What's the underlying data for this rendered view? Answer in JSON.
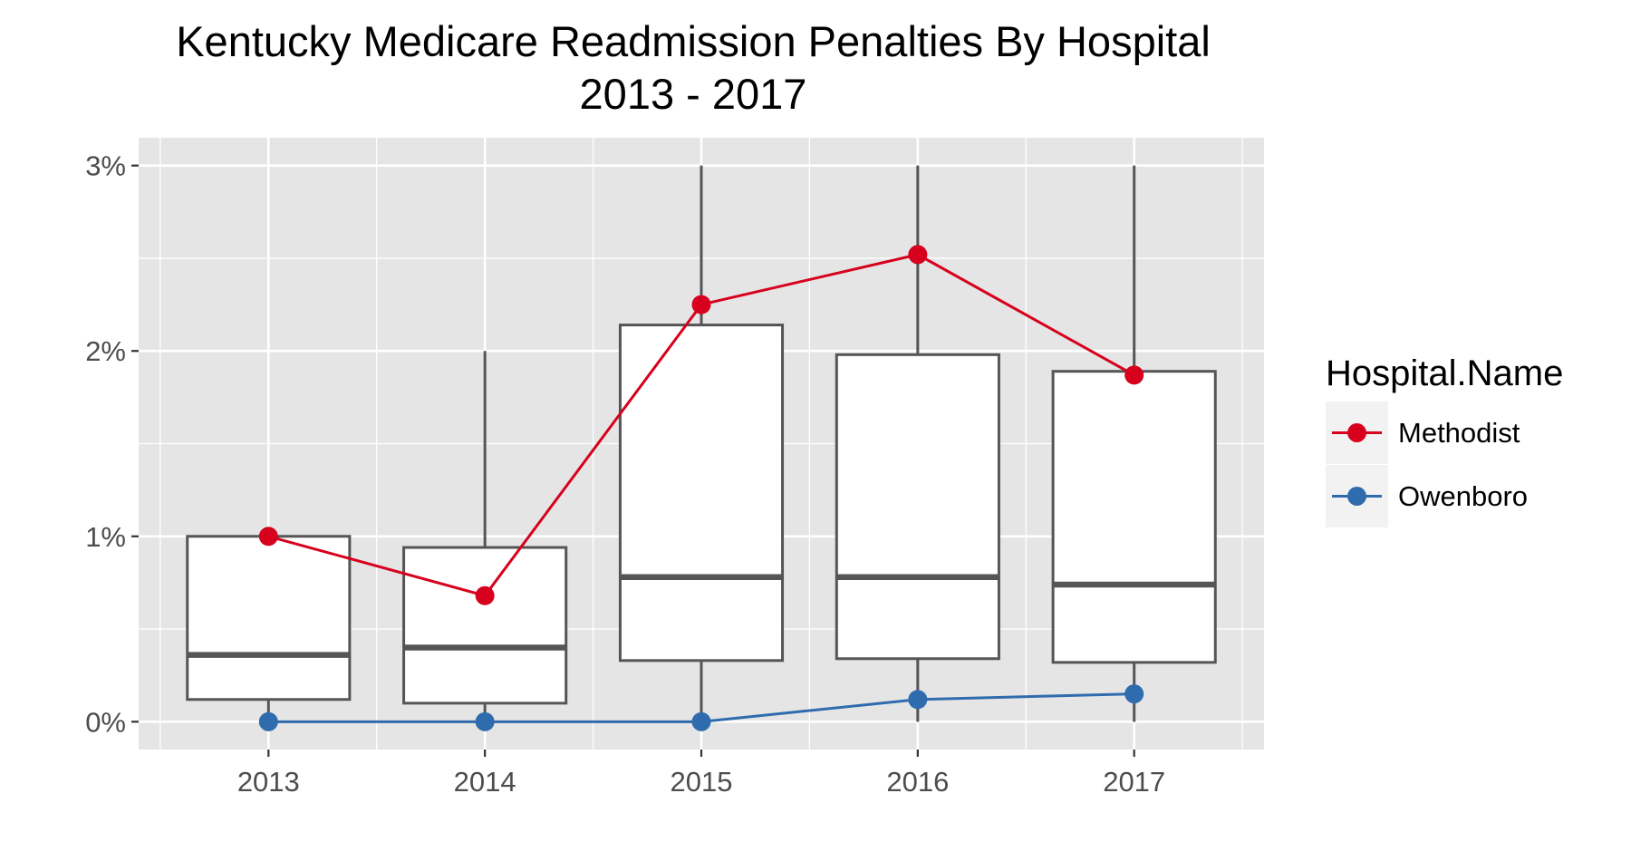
{
  "chart_data": {
    "type": "boxplot_with_lines",
    "title": "Kentucky Medicare Readmission Penalties By Hospital",
    "subtitle": "2013 - 2017",
    "xlabel": "",
    "ylabel": "",
    "categories": [
      "2013",
      "2014",
      "2015",
      "2016",
      "2017"
    ],
    "y_ticks": [
      {
        "value": 0,
        "label": "0%"
      },
      {
        "value": 1,
        "label": "1%"
      },
      {
        "value": 2,
        "label": "2%"
      },
      {
        "value": 3,
        "label": "3%"
      }
    ],
    "ylim": [
      -0.15,
      3.15
    ],
    "grid": true,
    "legend_placement": "right",
    "boxes": [
      {
        "category": "2013",
        "whisker_low": 0,
        "q1": 0.12,
        "median": 0.36,
        "q3": 1.0,
        "whisker_high": 1.0
      },
      {
        "category": "2014",
        "whisker_low": 0,
        "q1": 0.1,
        "median": 0.4,
        "q3": 0.94,
        "whisker_high": 2.0
      },
      {
        "category": "2015",
        "whisker_low": 0,
        "q1": 0.33,
        "median": 0.78,
        "q3": 2.14,
        "whisker_high": 3.0
      },
      {
        "category": "2016",
        "whisker_low": 0,
        "q1": 0.34,
        "median": 0.78,
        "q3": 1.98,
        "whisker_high": 3.0
      },
      {
        "category": "2017",
        "whisker_low": 0,
        "q1": 0.32,
        "median": 0.74,
        "q3": 1.89,
        "whisker_high": 3.0
      }
    ],
    "legend_title": "Hospital.Name",
    "series": [
      {
        "name": "Methodist",
        "color": "#d7001d",
        "values": [
          1.0,
          0.68,
          2.25,
          2.52,
          1.87
        ]
      },
      {
        "name": "Owenboro",
        "color": "#2f6cae",
        "values": [
          0.0,
          0.0,
          0.0,
          0.12,
          0.15
        ]
      }
    ],
    "colors": {
      "panel_background": "#e5e5e5",
      "grid": "#ffffff",
      "box_stroke": "#555555",
      "box_fill": "#ffffff"
    }
  }
}
